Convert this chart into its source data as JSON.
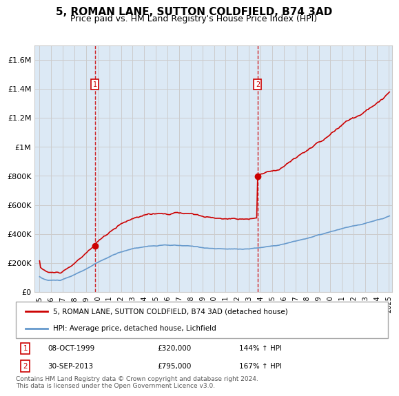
{
  "title": "5, ROMAN LANE, SUTTON COLDFIELD, B74 3AD",
  "subtitle": "Price paid vs. HM Land Registry's House Price Index (HPI)",
  "title_fontsize": 11,
  "subtitle_fontsize": 9,
  "sale1_date": "08-OCT-1999",
  "sale1_price": 320000,
  "sale2_date": "30-SEP-2013",
  "sale2_price": 795000,
  "sale1_pct": "144% ↑ HPI",
  "sale2_pct": "167% ↑ HPI",
  "legend_line1": "5, ROMAN LANE, SUTTON COLDFIELD, B74 3AD (detached house)",
  "legend_line2": "HPI: Average price, detached house, Lichfield",
  "footer": "Contains HM Land Registry data © Crown copyright and database right 2024.\nThis data is licensed under the Open Government Licence v3.0.",
  "red_color": "#cc0000",
  "blue_color": "#6699cc",
  "bg_color": "#dce9f5",
  "grid_color": "#cccccc",
  "ylim": [
    0,
    1700000
  ],
  "yticks": [
    0,
    200000,
    400000,
    600000,
    800000,
    1000000,
    1200000,
    1400000,
    1600000
  ],
  "ytick_labels": [
    "£0",
    "£200K",
    "£400K",
    "£600K",
    "£800K",
    "£1M",
    "£1.2M",
    "£1.4M",
    "£1.6M"
  ]
}
